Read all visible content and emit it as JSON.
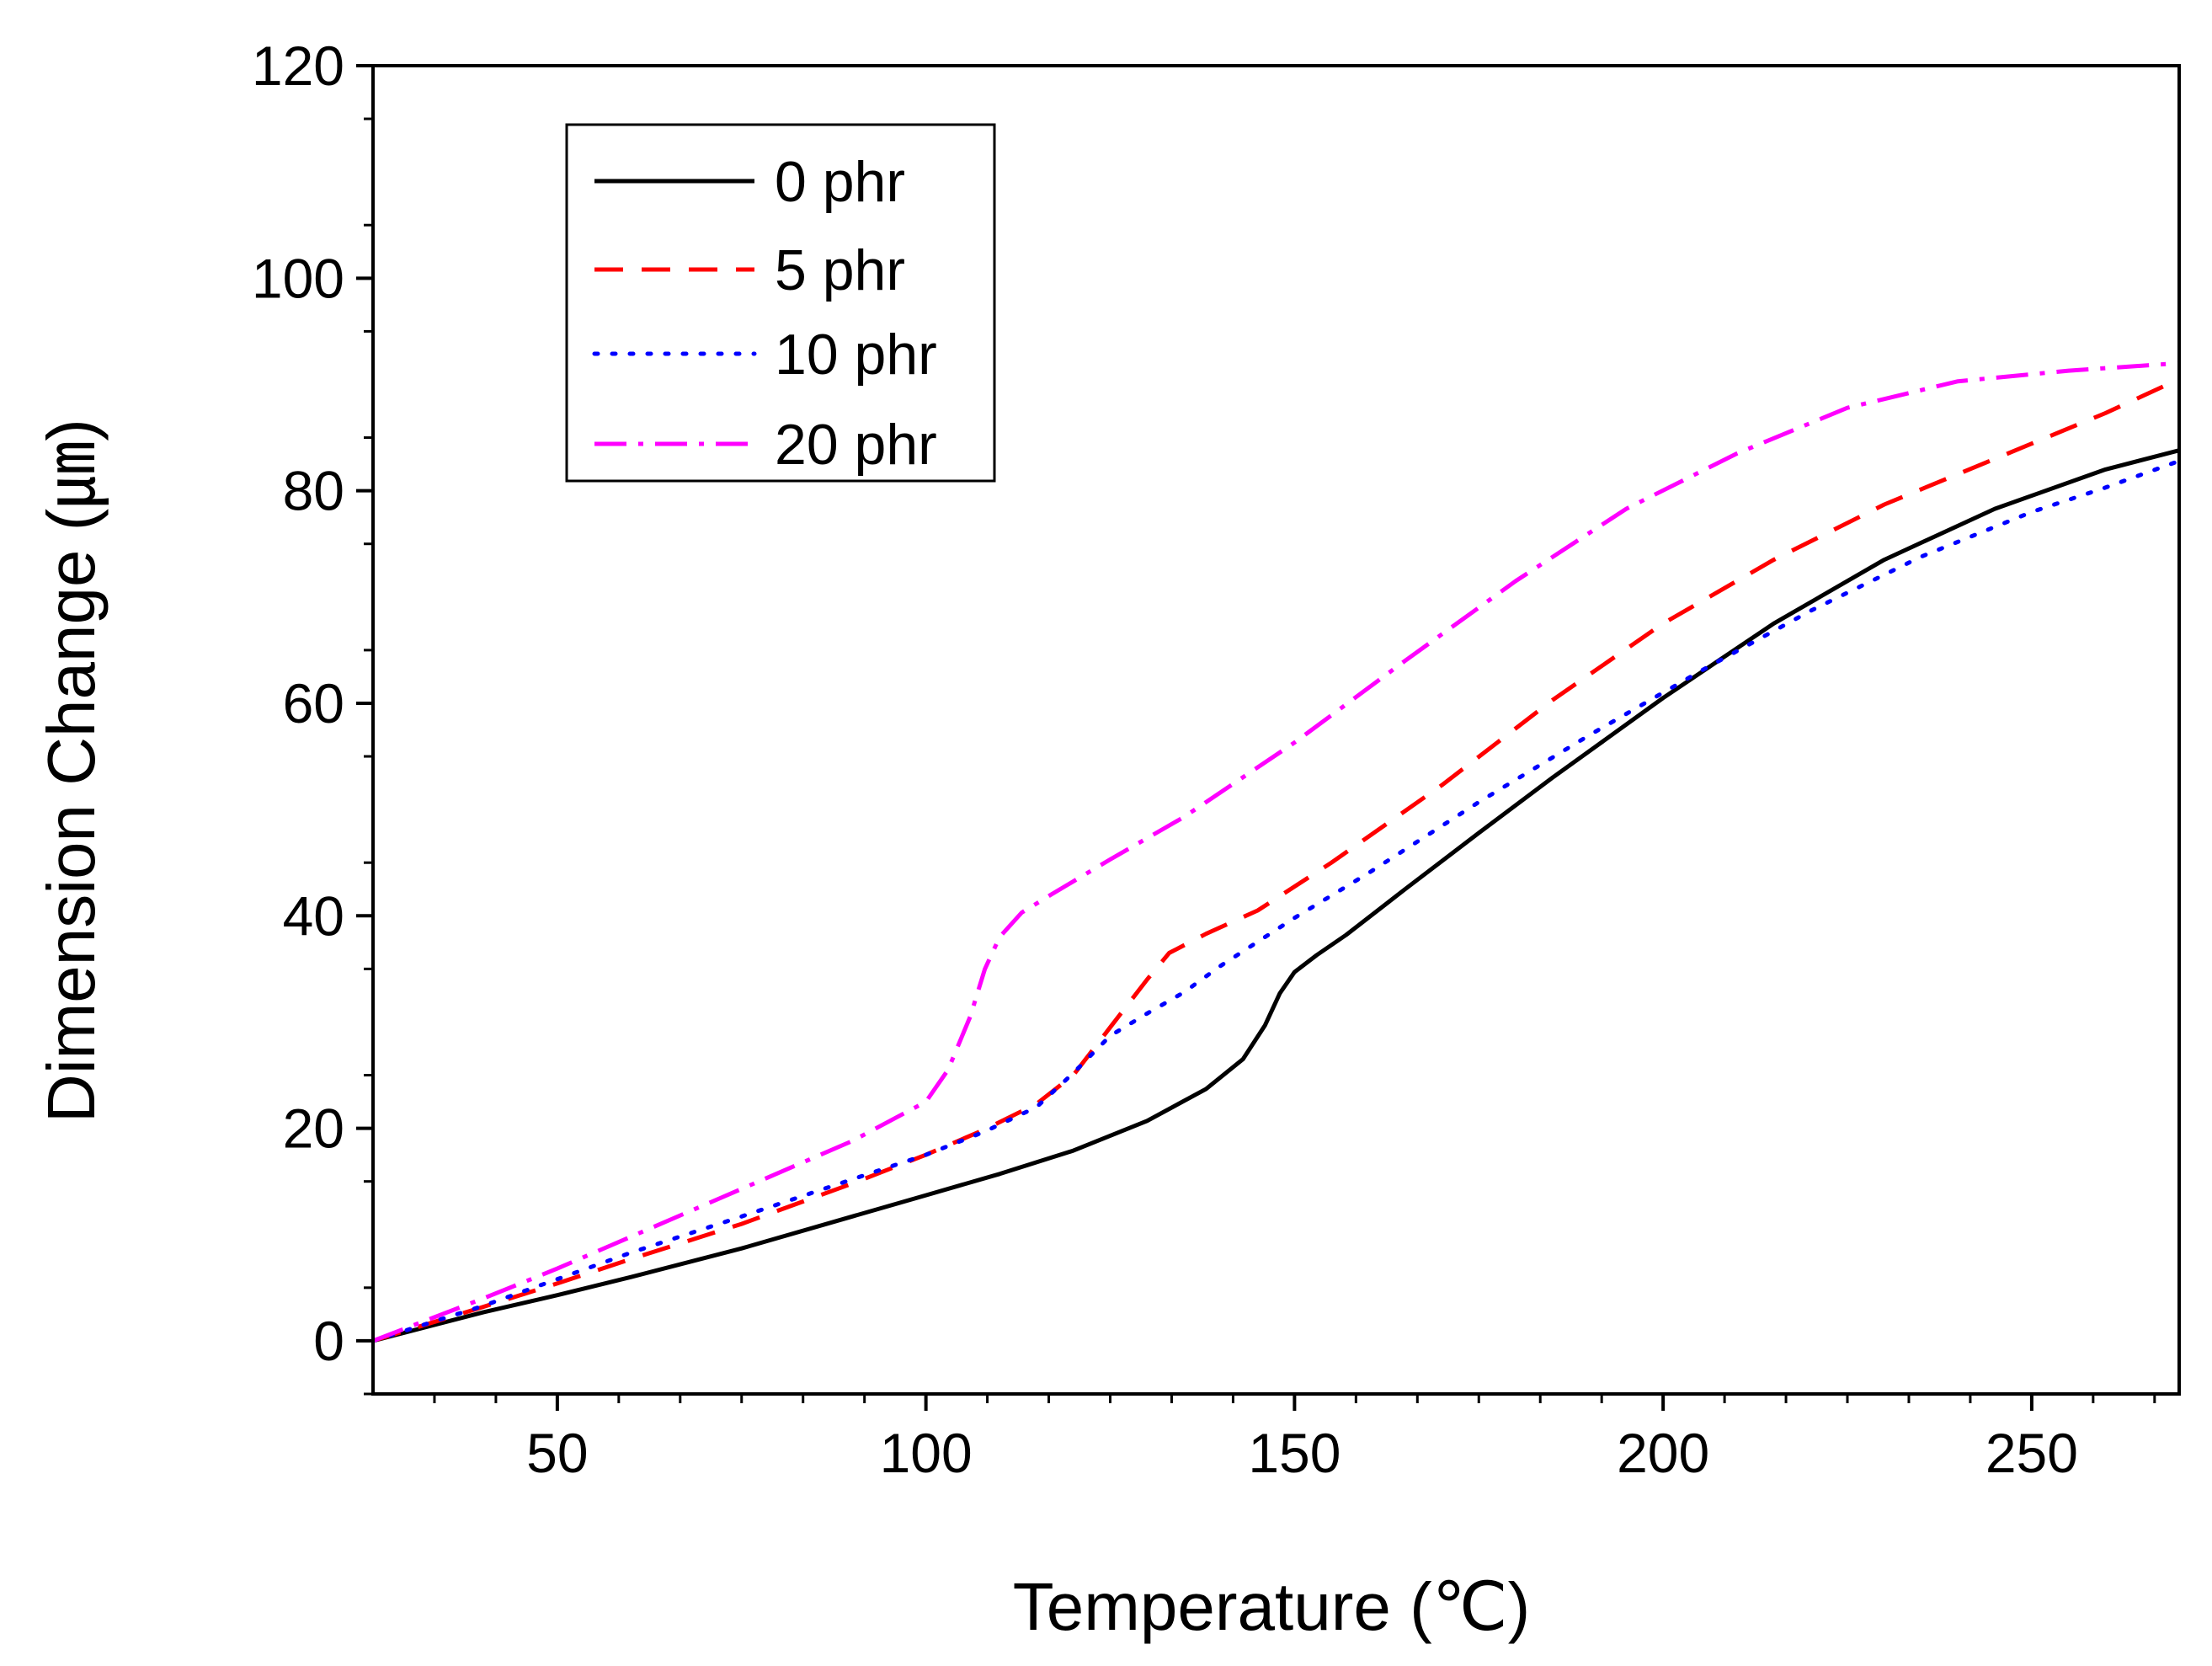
{
  "chart_data": {
    "type": "line",
    "title": "",
    "xlabel": "Temperature (℃)",
    "ylabel": "Dimension Change (㎛)",
    "xlim": [
      25,
      270
    ],
    "ylim": [
      -5,
      120
    ],
    "xticks": [
      50,
      100,
      150,
      200,
      250
    ],
    "xtick_labels": [
      "50",
      "100",
      "150",
      "200",
      "250"
    ],
    "yticks": [
      0,
      20,
      40,
      60,
      80,
      100,
      120
    ],
    "ytick_labels": [
      "0",
      "20",
      "40",
      "60",
      "80",
      "100",
      "120"
    ],
    "x_minor_step": 8.3333,
    "y_minor_step": 10,
    "grid": false,
    "legend_position": "top-left",
    "series": [
      {
        "name": "0 phr",
        "color": "#000000",
        "dash": "solid",
        "x": [
          25,
          40,
          50,
          60,
          75,
          90,
          100,
          110,
          120,
          130,
          138,
          143,
          146,
          148,
          150,
          153,
          157,
          165,
          175,
          185,
          200,
          215,
          230,
          245,
          260,
          270
        ],
        "y": [
          0,
          2.7,
          4.3,
          6.0,
          8.7,
          11.7,
          13.7,
          15.7,
          17.9,
          20.7,
          23.7,
          26.5,
          29.7,
          32.7,
          34.7,
          36.3,
          38.2,
          42.5,
          47.8,
          53.0,
          60.5,
          67.5,
          73.5,
          78.3,
          82.0,
          83.8
        ]
      },
      {
        "name": "5 phr",
        "color": "#ff0000",
        "dash": "dashed",
        "x": [
          25,
          40,
          50,
          60,
          75,
          90,
          100,
          108,
          115,
          120,
          125,
          130,
          133,
          138,
          145,
          155,
          170,
          185,
          200,
          215,
          230,
          245,
          260,
          270
        ],
        "y": [
          0,
          3.2,
          5.4,
          7.7,
          11.0,
          14.8,
          17.5,
          19.9,
          22.3,
          25.0,
          29.5,
          34.0,
          36.5,
          38.3,
          40.5,
          45.0,
          52.3,
          60.3,
          67.5,
          73.5,
          78.7,
          83.0,
          87.3,
          90.5
        ]
      },
      {
        "name": "10 phr",
        "color": "#0000ff",
        "dash": "dotted",
        "x": [
          25,
          40,
          50,
          60,
          75,
          90,
          100,
          108,
          115,
          120,
          125,
          130,
          135,
          140,
          150,
          160,
          175,
          190,
          205,
          220,
          235,
          250,
          260,
          270
        ],
        "y": [
          0,
          3.3,
          5.8,
          8.3,
          11.7,
          15.2,
          17.5,
          19.7,
          22.0,
          25.2,
          28.7,
          30.8,
          32.8,
          35.3,
          39.8,
          44.0,
          50.7,
          57.0,
          63.0,
          68.7,
          73.8,
          78.0,
          80.3,
          82.8
        ]
      },
      {
        "name": "20 phr",
        "color": "#ff00ff",
        "dash": "dashdot",
        "x": [
          25,
          40,
          50,
          60,
          75,
          90,
          100,
          103,
          106,
          108,
          110,
          113,
          117,
          125,
          135,
          150,
          165,
          180,
          195,
          210,
          225,
          240,
          255,
          270
        ],
        "y": [
          0,
          4.0,
          6.8,
          9.8,
          14.3,
          18.8,
          22.5,
          25.5,
          30.5,
          35.0,
          38.0,
          40.3,
          42.0,
          45.3,
          49.3,
          56.3,
          64.0,
          71.5,
          78.3,
          83.5,
          87.8,
          90.3,
          91.3,
          92.0
        ]
      }
    ]
  }
}
